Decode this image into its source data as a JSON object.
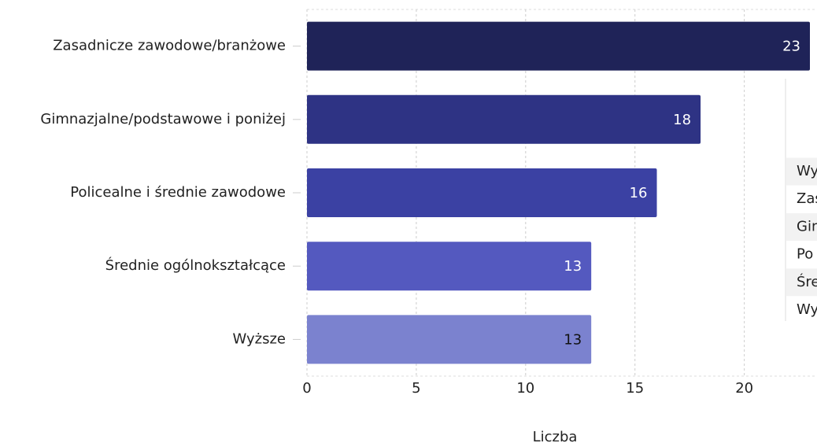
{
  "chart_data": {
    "type": "hbar",
    "categories": [
      "Zasadnicze zawodowe/branżowe",
      "Gimnazjalne/podstawowe i poniżej",
      "Policealne i średnie zawodowe",
      "Średnie ogólnokształcące",
      "Wyższe"
    ],
    "values": [
      23,
      18,
      16,
      13,
      13
    ],
    "colors": [
      "#1f2358",
      "#2e3384",
      "#3b41a3",
      "#5459bf",
      "#7b82cf"
    ],
    "label_colors": [
      "#ffffff",
      "#ffffff",
      "#ffffff",
      "#ffffff",
      "#111111"
    ],
    "xlabel": "Liczba",
    "xlim": [
      0,
      23
    ],
    "xticks": [
      0,
      5,
      10,
      15,
      20
    ],
    "grid": true
  },
  "table": {
    "rows": [
      "Wy",
      "Zas",
      "Gim",
      "Po",
      "Śre",
      "Wy"
    ]
  }
}
